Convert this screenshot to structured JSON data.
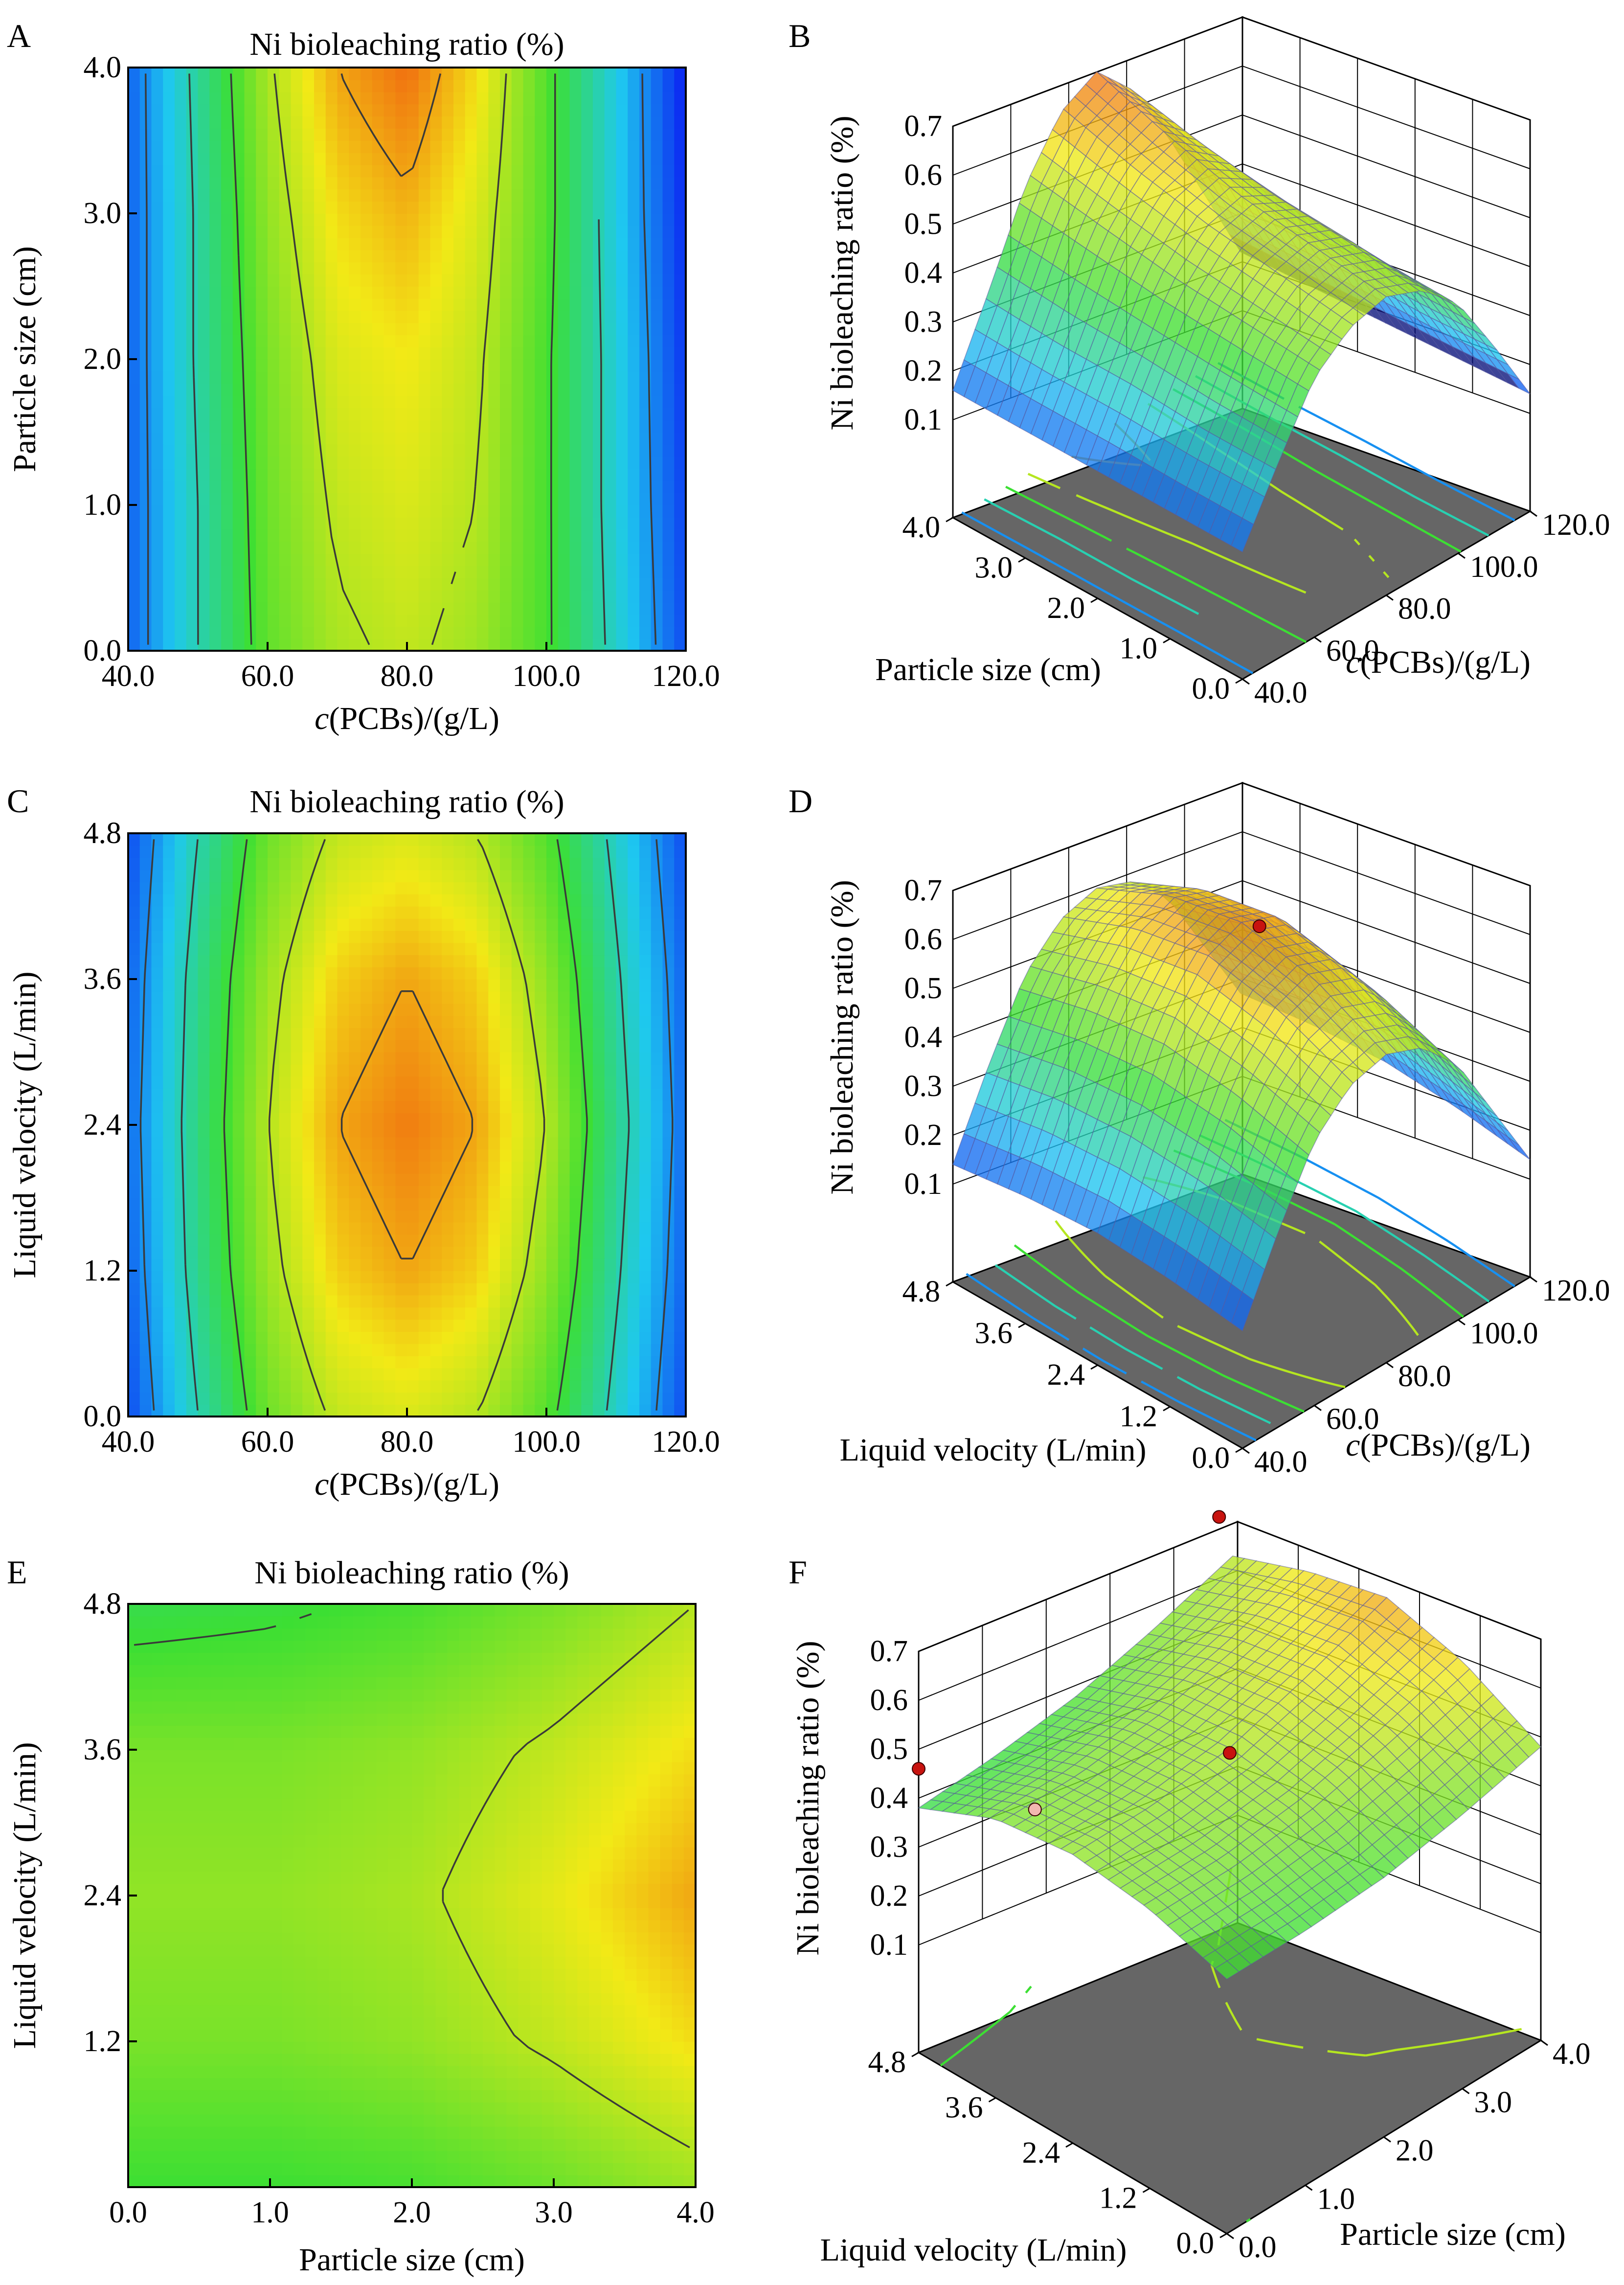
{
  "colors": {
    "low": "#0a1ff2",
    "mid_low": "#1ec8f0",
    "mid": "#3cdf33",
    "mid_high": "#f2e916",
    "high": "#f01d0c",
    "floor": "#666666",
    "deep_blue_surface": "#07107a",
    "point": "#c8130f",
    "point_light": "#f2b7b0"
  },
  "panels": [
    {
      "label": "A",
      "title": "Ni bioleaching ratio (%)",
      "xlabel_italic": "c",
      "xlabel_rest": "(PCBs)/(g/L)",
      "ylabel": "Particle size (cm)",
      "xticks": [
        "40.0",
        "60.0",
        "80.0",
        "100.0",
        "120.0"
      ],
      "yticks": [
        "0.0",
        "1.0",
        "2.0",
        "3.0",
        "4.0"
      ]
    },
    {
      "label": "B",
      "zlabel": "Ni bioleaching ratio (%)",
      "zticks": [
        "0.1",
        "0.2",
        "0.3",
        "0.4",
        "0.5",
        "0.6",
        "0.7"
      ],
      "left_axis_label": "Particle size (cm)",
      "left_ticks": [
        "4.0",
        "3.0",
        "2.0",
        "1.0",
        "0.0"
      ],
      "right_axis_label_italic": "c",
      "right_axis_label_rest": "(PCBs)/(g/L)",
      "right_ticks": [
        "40.0",
        "60.0",
        "80.0",
        "100.0",
        "120.0"
      ]
    },
    {
      "label": "C",
      "title": "Ni bioleaching ratio (%)",
      "xlabel_italic": "c",
      "xlabel_rest": "(PCBs)/(g/L)",
      "ylabel": "Liquid velocity (L/min)",
      "xticks": [
        "40.0",
        "60.0",
        "80.0",
        "100.0",
        "120.0"
      ],
      "yticks": [
        "0.0",
        "1.2",
        "2.4",
        "3.6",
        "4.8"
      ]
    },
    {
      "label": "D",
      "zlabel": "Ni bioleaching ratio (%)",
      "zticks": [
        "0.1",
        "0.2",
        "0.3",
        "0.4",
        "0.5",
        "0.6",
        "0.7"
      ],
      "left_axis_label": "Liquid velocity (L/min)",
      "left_ticks": [
        "4.8",
        "3.6",
        "2.4",
        "1.2",
        "0.0"
      ],
      "right_axis_label_italic": "c",
      "right_axis_label_rest": "(PCBs)/(g/L)",
      "right_ticks": [
        "40.0",
        "60.0",
        "80.0",
        "100.0",
        "120.0"
      ]
    },
    {
      "label": "E",
      "title": "Ni bioleaching ratio (%)",
      "xlabel_italic": "",
      "xlabel_rest": "Particle size (cm)",
      "ylabel": "Liquid velocity (L/min)",
      "xticks": [
        "0.0",
        "1.0",
        "2.0",
        "3.0",
        "4.0"
      ],
      "yticks": [
        "1.2",
        "2.4",
        "3.6",
        "4.8"
      ]
    },
    {
      "label": "F",
      "zlabel": "Ni bioleaching ratio (%)",
      "zticks": [
        "0.1",
        "0.2",
        "0.3",
        "0.4",
        "0.5",
        "0.6",
        "0.7"
      ],
      "left_axis_label": "Liquid velocity (L/min)",
      "left_ticks": [
        "4.8",
        "3.6",
        "2.4",
        "1.2",
        "0.0"
      ],
      "right_axis_label_italic": "",
      "right_axis_label_rest": "Particle size (cm)",
      "right_ticks": [
        "0.0",
        "1.0",
        "2.0",
        "3.0",
        "4.0"
      ]
    }
  ],
  "chart_data": [
    {
      "type": "heatmap",
      "title": "Ni bioleaching ratio (%)",
      "xlabel": "c(PCBs)/(g/L)",
      "ylabel": "Particle size (cm)",
      "xlim": [
        40,
        120
      ],
      "ylim": [
        0,
        4
      ],
      "x_grid": [
        40,
        50,
        60,
        70,
        80,
        90,
        100,
        110,
        120
      ],
      "y_grid": [
        0,
        1,
        2,
        3,
        4
      ],
      "z": [
        [
          0.16,
          0.3,
          0.43,
          0.49,
          0.51,
          0.48,
          0.41,
          0.28,
          0.14
        ],
        [
          0.16,
          0.3,
          0.44,
          0.51,
          0.53,
          0.5,
          0.41,
          0.27,
          0.13
        ],
        [
          0.16,
          0.31,
          0.45,
          0.53,
          0.55,
          0.51,
          0.41,
          0.27,
          0.12
        ],
        [
          0.16,
          0.31,
          0.47,
          0.56,
          0.59,
          0.53,
          0.42,
          0.26,
          0.11
        ],
        [
          0.16,
          0.32,
          0.49,
          0.6,
          0.64,
          0.56,
          0.42,
          0.26,
          0.1
        ]
      ],
      "zlim": [
        0.1,
        0.7
      ]
    },
    {
      "type": "surface",
      "zlabel": "Ni bioleaching ratio (%)",
      "xlabel": "c(PCBs)/(g/L)",
      "ylabel": "Particle size (cm)",
      "xlim": [
        40,
        120
      ],
      "ylim": [
        0,
        4
      ],
      "zlim": [
        0.1,
        0.7
      ],
      "same_model_as": "A"
    },
    {
      "type": "heatmap",
      "title": "Ni bioleaching ratio (%)",
      "xlabel": "c(PCBs)/(g/L)",
      "ylabel": "Liquid velocity (L/min)",
      "xlim": [
        40,
        120
      ],
      "ylim": [
        0,
        4.8
      ],
      "x_grid": [
        40,
        50,
        60,
        70,
        80,
        90,
        100,
        110,
        120
      ],
      "y_grid": [
        0,
        1.2,
        2.4,
        3.6,
        4.8
      ],
      "z": [
        [
          0.14,
          0.3,
          0.44,
          0.51,
          0.53,
          0.5,
          0.42,
          0.28,
          0.14
        ],
        [
          0.16,
          0.33,
          0.48,
          0.57,
          0.6,
          0.57,
          0.47,
          0.31,
          0.16
        ],
        [
          0.17,
          0.34,
          0.5,
          0.6,
          0.63,
          0.6,
          0.5,
          0.33,
          0.17
        ],
        [
          0.16,
          0.33,
          0.48,
          0.57,
          0.6,
          0.57,
          0.47,
          0.31,
          0.16
        ],
        [
          0.14,
          0.3,
          0.44,
          0.51,
          0.53,
          0.5,
          0.42,
          0.28,
          0.14
        ]
      ],
      "zlim": [
        0.1,
        0.7
      ]
    },
    {
      "type": "surface",
      "zlabel": "Ni bioleaching ratio (%)",
      "xlabel": "c(PCBs)/(g/L)",
      "ylabel": "Liquid velocity (L/min)",
      "xlim": [
        40,
        120
      ],
      "ylim": [
        0,
        4.8
      ],
      "zlim": [
        0.1,
        0.7
      ],
      "same_model_as": "C",
      "points": [
        {
          "x": 85,
          "y": 2.4,
          "z": 0.6
        }
      ]
    },
    {
      "type": "heatmap",
      "title": "Ni bioleaching ratio (%)",
      "xlabel": "Particle size (cm)",
      "ylabel": "Liquid velocity (L/min)",
      "xlim": [
        0,
        4
      ],
      "ylim": [
        0,
        4.8
      ],
      "x_grid": [
        0,
        1,
        2,
        3,
        4
      ],
      "y_grid": [
        0,
        1.2,
        2.4,
        3.6,
        4.8
      ],
      "z": [
        [
          0.4,
          0.4,
          0.41,
          0.44,
          0.48
        ],
        [
          0.45,
          0.45,
          0.47,
          0.51,
          0.56
        ],
        [
          0.47,
          0.47,
          0.49,
          0.54,
          0.6
        ],
        [
          0.45,
          0.45,
          0.47,
          0.51,
          0.56
        ],
        [
          0.38,
          0.39,
          0.41,
          0.45,
          0.5
        ]
      ],
      "zlim": [
        0.1,
        0.7
      ]
    },
    {
      "type": "surface",
      "zlabel": "Ni bioleaching ratio (%)",
      "xlabel": "Particle size (cm)",
      "ylabel": "Liquid velocity (L/min)",
      "xlim": [
        0,
        4
      ],
      "ylim": [
        0,
        4.8
      ],
      "zlim": [
        0.1,
        0.7
      ],
      "same_model_as": "E",
      "points": [
        {
          "x": 0.0,
          "y": 4.8,
          "z": 0.46,
          "color": "dark"
        },
        {
          "x": 0.5,
          "y": 3.6,
          "z": 0.42,
          "color": "light"
        },
        {
          "x": 2.0,
          "y": 2.4,
          "z": 0.48,
          "color": "dark"
        },
        {
          "x": 3.5,
          "y": 4.4,
          "z": 0.66,
          "color": "dark"
        }
      ]
    }
  ]
}
